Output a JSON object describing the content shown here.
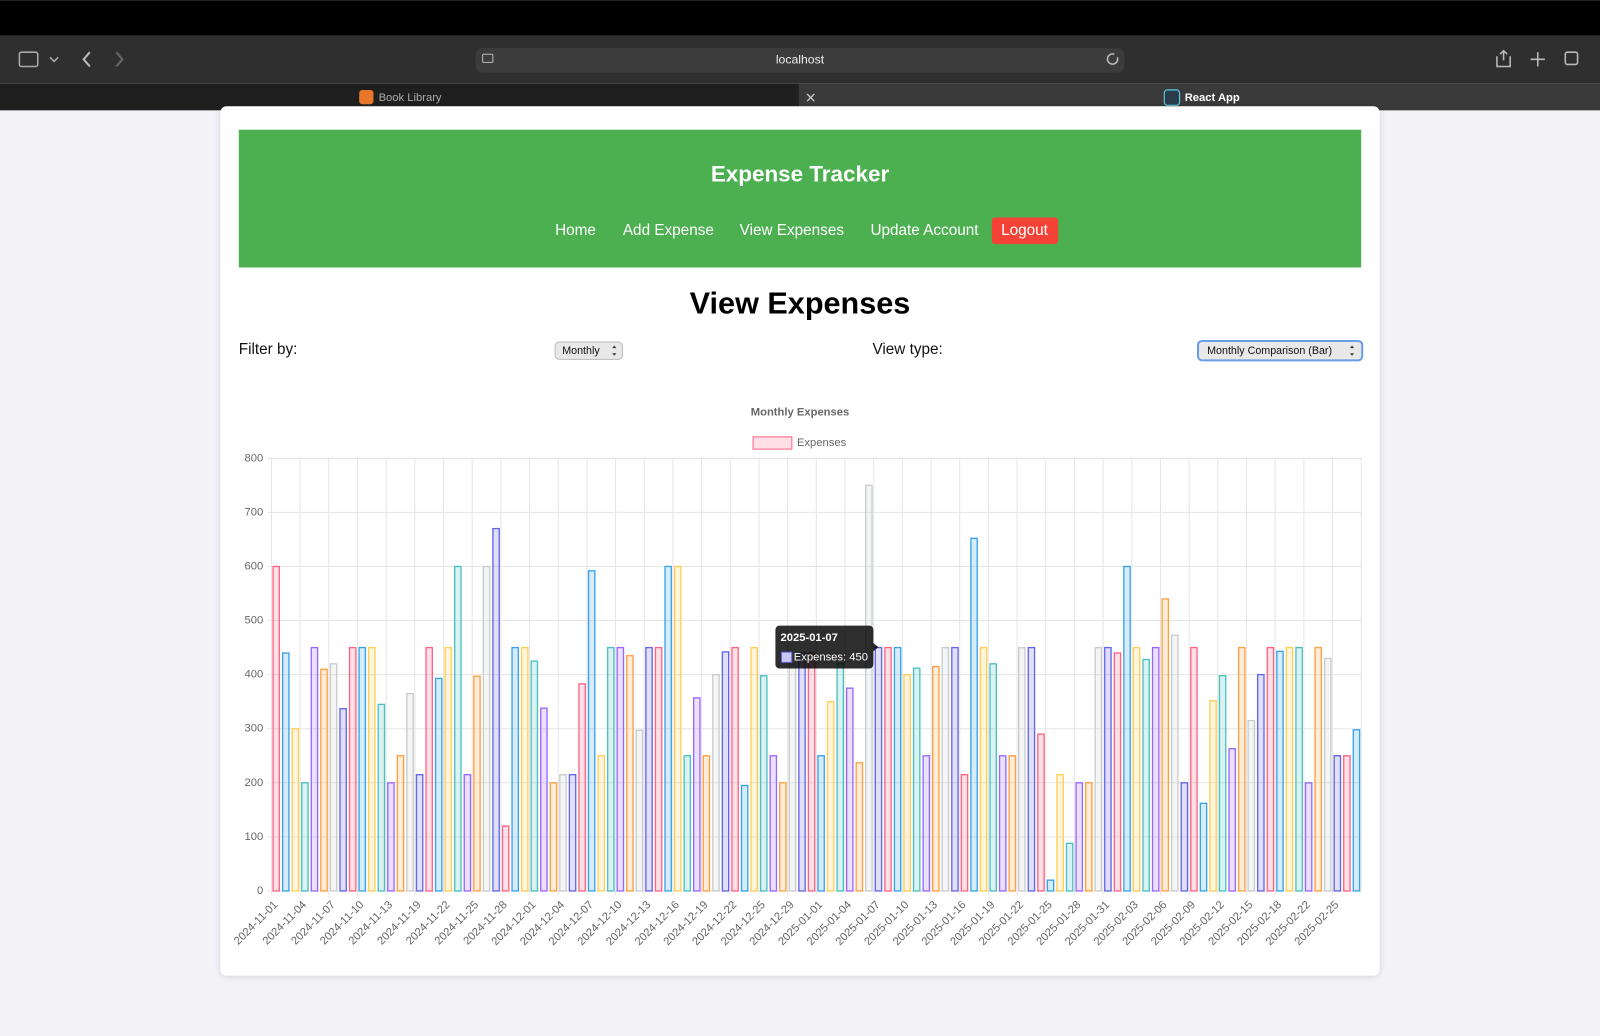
{
  "browser": {
    "url": "localhost",
    "tabs": [
      "Book Library",
      "React App"
    ]
  },
  "header": {
    "title": "Expense Tracker",
    "nav": [
      "Home",
      "Add Expense",
      "View Expenses",
      "Update Account",
      "Logout"
    ]
  },
  "page": {
    "heading": "View Expenses",
    "filter_label": "Filter by:",
    "filter_value": "Monthly",
    "view_label": "View type:",
    "view_value": "Monthly Comparison (Bar)"
  },
  "chart_data": {
    "type": "bar",
    "title": "Monthly Expenses",
    "categories": [
      "2024-11-01",
      null,
      null,
      "2024-11-04",
      null,
      null,
      "2024-11-07",
      null,
      null,
      "2024-11-10",
      null,
      null,
      "2024-11-13",
      null,
      null,
      "2024-11-19",
      null,
      null,
      "2024-11-22",
      null,
      null,
      "2024-11-25",
      null,
      null,
      "2024-11-28",
      null,
      null,
      "2024-12-01",
      null,
      null,
      "2024-12-04",
      null,
      null,
      "2024-12-07",
      null,
      null,
      "2024-12-10",
      null,
      null,
      "2024-12-13",
      null,
      null,
      "2024-12-16",
      null,
      null,
      "2024-12-19",
      null,
      null,
      "2024-12-22",
      null,
      null,
      "2024-12-25",
      null,
      null,
      "2024-12-29",
      null,
      null,
      "2025-01-01",
      null,
      null,
      "2025-01-04",
      null,
      null,
      "2025-01-07",
      null,
      null,
      "2025-01-10",
      null,
      null,
      "2025-01-13",
      null,
      null,
      "2025-01-16",
      null,
      null,
      "2025-01-19",
      null,
      null,
      "2025-01-22",
      null,
      null,
      "2025-01-25",
      null,
      null,
      "2025-01-28",
      null,
      null,
      "2025-01-31",
      null,
      null,
      "2025-02-03",
      null,
      null,
      "2025-02-06",
      null,
      null,
      "2025-02-09",
      null,
      null,
      "2025-02-12",
      null,
      null,
      "2025-02-15",
      null,
      null,
      "2025-02-18",
      null,
      null,
      "2025-02-22",
      null,
      null,
      "2025-02-25",
      null,
      null
    ],
    "series": [
      {
        "name": "Expenses",
        "color": "#ff6384",
        "colors": [
          "#ff6384",
          "#36a2eb",
          "#ffce56",
          "#4bc0c0",
          "#9966ff",
          "#ff9f40",
          "#c9cbcf",
          "#6464e6"
        ],
        "values": [
          600,
          440,
          300,
          200,
          450,
          410,
          420,
          337,
          450,
          450,
          450,
          345,
          200,
          250,
          365,
          215,
          450,
          393,
          450,
          600,
          215,
          397,
          600,
          670,
          120,
          450,
          450,
          425,
          338,
          200,
          215,
          215,
          383,
          592,
          250,
          450,
          450,
          435,
          297,
          450,
          450,
          600,
          600,
          250,
          357,
          250,
          400,
          442,
          450,
          195,
          450,
          398,
          250,
          200,
          420,
          440,
          440,
          250,
          350,
          420,
          375,
          237,
          750,
          450,
          450,
          450,
          400,
          412,
          250,
          415,
          450,
          450,
          215,
          652,
          450,
          420,
          250,
          250,
          450,
          450,
          290,
          20,
          215,
          88,
          200,
          200,
          450,
          450,
          440,
          600,
          450,
          428,
          450,
          540,
          473,
          200,
          450,
          162,
          352,
          398,
          263,
          450,
          315,
          400,
          450,
          443,
          450,
          450,
          200,
          450,
          430,
          250,
          250,
          298
        ]
      }
    ],
    "ylim": [
      0,
      800
    ],
    "yticks": [
      0,
      100,
      200,
      300,
      400,
      500,
      600,
      700,
      800
    ],
    "grid": true,
    "legend": "top",
    "tooltip": {
      "title": "2025-01-07",
      "label": "Expenses: 450"
    }
  }
}
